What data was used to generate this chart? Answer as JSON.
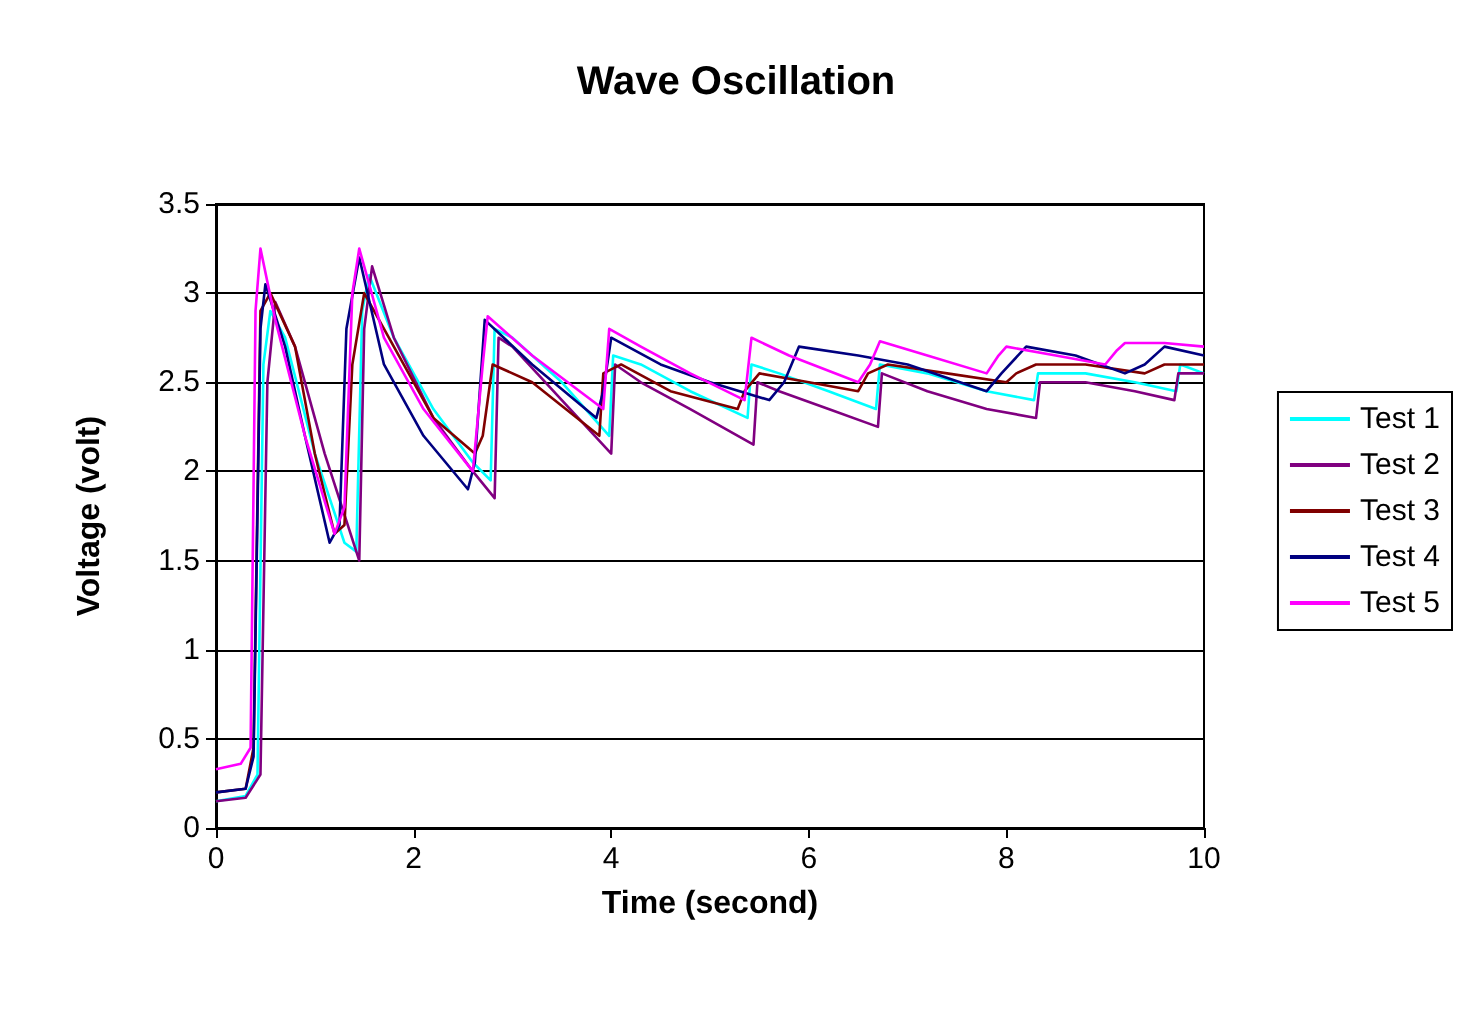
{
  "chart_data": {
    "type": "line",
    "title": "Wave Oscillation",
    "xlabel": "Time (second)",
    "ylabel": "Voltage (volt)",
    "xlim": [
      0,
      10
    ],
    "xticks": [
      0,
      2,
      4,
      6,
      8,
      10
    ],
    "ylim": [
      0,
      3.5
    ],
    "yticks": [
      0,
      0.5,
      1,
      1.5,
      2,
      2.5,
      3,
      3.5
    ],
    "grid": "y",
    "legend": "right",
    "marker": "none",
    "line_style": "solid",
    "series": [
      {
        "name": "Test 1",
        "color": "#00ffff",
        "x": [
          0,
          0.3,
          0.42,
          0.48,
          0.55,
          0.7,
          1.0,
          1.3,
          1.42,
          1.48,
          1.55,
          1.8,
          2.2,
          2.6,
          2.78,
          2.82,
          3.0,
          3.5,
          3.98,
          4.02,
          4.3,
          4.8,
          5.38,
          5.42,
          5.7,
          6.2,
          6.68,
          6.72,
          7.2,
          7.8,
          8.28,
          8.32,
          8.8,
          9.3,
          9.72,
          9.76,
          10
        ],
        "values": [
          0.15,
          0.18,
          0.3,
          2.6,
          2.9,
          2.75,
          2.1,
          1.6,
          1.55,
          2.9,
          3.1,
          2.75,
          2.35,
          2.05,
          1.95,
          2.8,
          2.75,
          2.5,
          2.2,
          2.65,
          2.6,
          2.45,
          2.3,
          2.6,
          2.55,
          2.45,
          2.35,
          2.6,
          2.55,
          2.45,
          2.4,
          2.55,
          2.55,
          2.5,
          2.45,
          2.6,
          2.55
        ]
      },
      {
        "name": "Test 2",
        "color": "#800080",
        "x": [
          0,
          0.3,
          0.45,
          0.52,
          0.6,
          0.8,
          1.1,
          1.45,
          1.5,
          1.58,
          1.8,
          2.2,
          2.6,
          2.82,
          2.86,
          3.0,
          3.5,
          4.0,
          4.04,
          4.3,
          4.8,
          5.44,
          5.48,
          5.7,
          6.2,
          6.7,
          6.74,
          7.2,
          7.8,
          8.3,
          8.34,
          8.8,
          9.3,
          9.7,
          9.74,
          10
        ],
        "values": [
          0.15,
          0.17,
          0.3,
          2.5,
          2.95,
          2.7,
          2.1,
          1.5,
          2.8,
          3.15,
          2.75,
          2.3,
          2.0,
          1.85,
          2.75,
          2.7,
          2.4,
          2.1,
          2.6,
          2.5,
          2.35,
          2.15,
          2.5,
          2.45,
          2.35,
          2.25,
          2.55,
          2.45,
          2.35,
          2.3,
          2.5,
          2.5,
          2.45,
          2.4,
          2.55,
          2.55
        ]
      },
      {
        "name": "Test 3",
        "color": "#800000",
        "x": [
          0,
          0.3,
          0.38,
          0.45,
          0.55,
          0.8,
          1.0,
          1.2,
          1.3,
          1.38,
          1.5,
          1.8,
          2.2,
          2.62,
          2.7,
          2.8,
          3.2,
          3.88,
          3.92,
          4.1,
          4.6,
          5.28,
          5.35,
          5.5,
          6.0,
          6.5,
          6.6,
          6.8,
          7.4,
          8.0,
          8.1,
          8.3,
          8.8,
          9.4,
          9.6,
          10
        ],
        "values": [
          0.2,
          0.22,
          0.45,
          2.9,
          3.0,
          2.7,
          2.1,
          1.65,
          1.7,
          2.6,
          3.0,
          2.7,
          2.3,
          2.1,
          2.2,
          2.6,
          2.5,
          2.2,
          2.55,
          2.6,
          2.45,
          2.35,
          2.45,
          2.55,
          2.5,
          2.45,
          2.55,
          2.6,
          2.55,
          2.5,
          2.55,
          2.6,
          2.6,
          2.55,
          2.6,
          2.6
        ]
      },
      {
        "name": "Test 4",
        "color": "#000080",
        "x": [
          0,
          0.3,
          0.38,
          0.45,
          0.5,
          0.7,
          0.9,
          1.15,
          1.25,
          1.32,
          1.45,
          1.7,
          2.1,
          2.55,
          2.62,
          2.72,
          3.2,
          3.85,
          3.92,
          4.0,
          4.5,
          5.0,
          5.6,
          5.75,
          5.9,
          6.5,
          7.0,
          7.8,
          7.95,
          8.2,
          8.7,
          9.2,
          9.4,
          9.6,
          10
        ],
        "values": [
          0.2,
          0.22,
          0.4,
          2.8,
          3.05,
          2.7,
          2.2,
          1.6,
          1.7,
          2.8,
          3.2,
          2.6,
          2.2,
          1.9,
          2.05,
          2.85,
          2.6,
          2.3,
          2.45,
          2.75,
          2.6,
          2.5,
          2.4,
          2.5,
          2.7,
          2.65,
          2.6,
          2.45,
          2.55,
          2.7,
          2.65,
          2.55,
          2.6,
          2.7,
          2.65
        ]
      },
      {
        "name": "Test 5",
        "color": "#ff00ff",
        "x": [
          0,
          0.25,
          0.35,
          0.4,
          0.45,
          0.6,
          0.9,
          1.2,
          1.3,
          1.38,
          1.45,
          1.7,
          2.1,
          2.6,
          2.7,
          2.75,
          3.2,
          3.92,
          3.98,
          4.3,
          4.8,
          5.35,
          5.42,
          5.8,
          6.5,
          6.62,
          6.72,
          7.2,
          7.8,
          7.92,
          8.0,
          8.5,
          9.0,
          9.12,
          9.2,
          9.6,
          10
        ],
        "values": [
          0.33,
          0.36,
          0.45,
          2.9,
          3.25,
          2.85,
          2.2,
          1.65,
          1.8,
          3.0,
          3.25,
          2.75,
          2.35,
          2.0,
          2.6,
          2.87,
          2.65,
          2.35,
          2.8,
          2.7,
          2.55,
          2.4,
          2.75,
          2.65,
          2.5,
          2.6,
          2.73,
          2.65,
          2.55,
          2.65,
          2.7,
          2.65,
          2.6,
          2.68,
          2.72,
          2.72,
          2.7
        ]
      }
    ]
  }
}
